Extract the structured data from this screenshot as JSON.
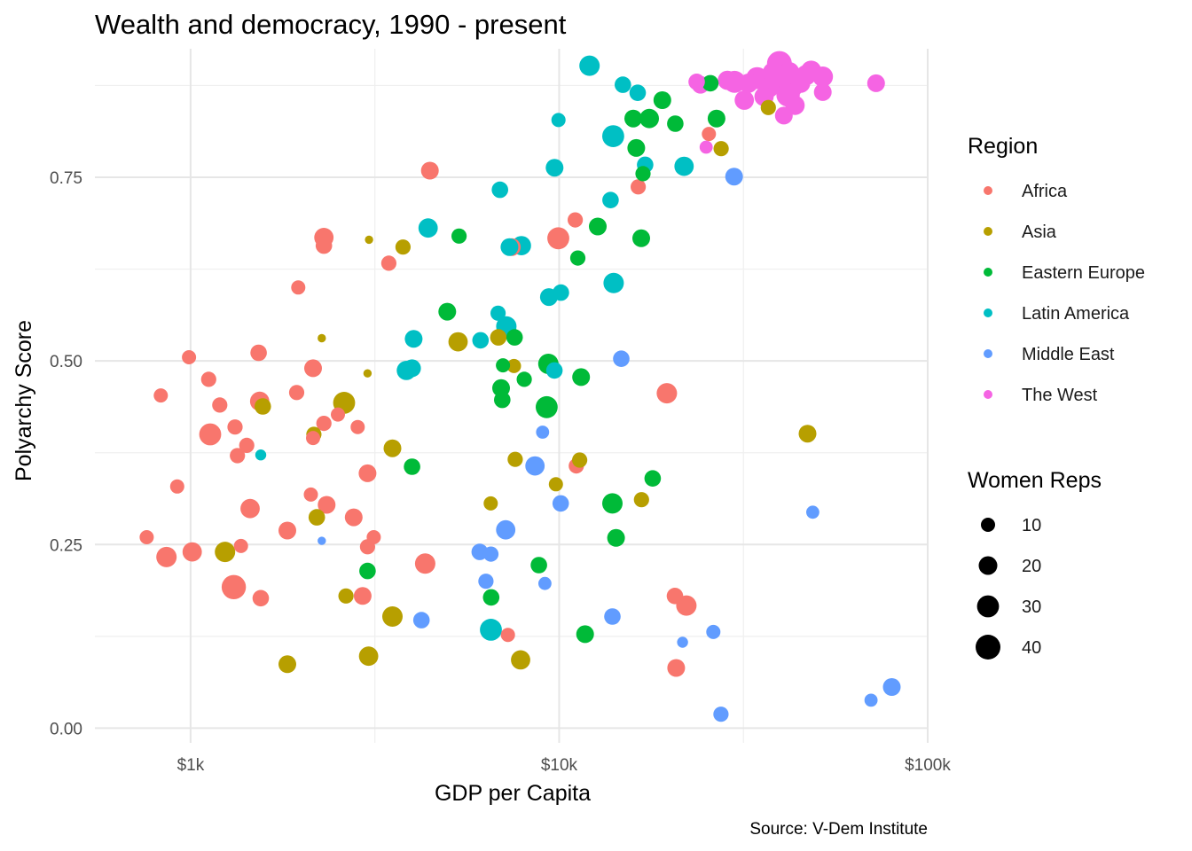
{
  "chart_data": {
    "type": "scatter",
    "title": "Wealth and democracy, 1990 - present",
    "xlabel": "GDP per Capita",
    "ylabel": "Polyarchy Score",
    "caption": "Source: V-Dem Institute",
    "x_scale": "log10",
    "xlim": [
      550,
      100000
    ],
    "ylim": [
      -0.02,
      0.925
    ],
    "x_ticks": [
      1000,
      10000,
      100000
    ],
    "x_tick_labels": [
      "$1k",
      "$10k",
      "$100k"
    ],
    "y_ticks": [
      0,
      0.25,
      0.5,
      0.75
    ],
    "y_tick_labels": [
      "0.00",
      "0.25",
      "0.50",
      "0.75"
    ],
    "grid": true,
    "legend_placement": "right",
    "color_legend": {
      "title": "Region",
      "entries": [
        {
          "name": "Africa",
          "color": "#F8766D"
        },
        {
          "name": "Asia",
          "color": "#B79F00"
        },
        {
          "name": "Eastern Europe",
          "color": "#00BA38"
        },
        {
          "name": "Latin America",
          "color": "#00BFC4"
        },
        {
          "name": "Middle East",
          "color": "#619CFF"
        },
        {
          "name": "The West",
          "color": "#F564E3"
        }
      ]
    },
    "size_legend": {
      "title": "Women Reps",
      "entries": [
        {
          "label": "10",
          "value": 10
        },
        {
          "label": "20",
          "value": 20
        },
        {
          "label": "30",
          "value": 30
        },
        {
          "label": "40",
          "value": 40
        }
      ]
    },
    "series": [
      {
        "name": "Africa",
        "points": [
          [
            830,
            0.453,
            10
          ],
          [
            990,
            0.505,
            10
          ],
          [
            1120,
            0.475,
            12
          ],
          [
            1130,
            0.4,
            30
          ],
          [
            1200,
            0.44,
            12
          ],
          [
            1320,
            0.41,
            12
          ],
          [
            1340,
            0.371,
            12
          ],
          [
            1420,
            0.385,
            12
          ],
          [
            1310,
            0.192,
            38
          ],
          [
            1450,
            0.299,
            22
          ],
          [
            1370,
            0.248,
            10
          ],
          [
            1530,
            0.511,
            15
          ],
          [
            1540,
            0.445,
            22
          ],
          [
            1550,
            0.177,
            15
          ],
          [
            1010,
            0.24,
            22
          ],
          [
            860,
            0.233,
            25
          ],
          [
            920,
            0.329,
            10
          ],
          [
            760,
            0.26,
            10
          ],
          [
            1960,
            0.6,
            10
          ],
          [
            1940,
            0.457,
            12
          ],
          [
            2150,
            0.49,
            18
          ],
          [
            2300,
            0.415,
            12
          ],
          [
            2150,
            0.395,
            10
          ],
          [
            2510,
            0.427,
            10
          ],
          [
            2300,
            0.668,
            22
          ],
          [
            2300,
            0.657,
            15
          ],
          [
            1830,
            0.269,
            18
          ],
          [
            2120,
            0.318,
            10
          ],
          [
            2340,
            0.304,
            18
          ],
          [
            2840,
            0.41,
            10
          ],
          [
            2770,
            0.287,
            18
          ],
          [
            3140,
            0.26,
            10
          ],
          [
            3020,
            0.247,
            12
          ],
          [
            3020,
            0.347,
            18
          ],
          [
            2930,
            0.18,
            18
          ],
          [
            3450,
            0.633,
            12
          ],
          [
            4460,
            0.759,
            18
          ],
          [
            4330,
            0.224,
            25
          ],
          [
            7440,
            0.655,
            18
          ],
          [
            9950,
            0.667,
            30
          ],
          [
            11060,
            0.692,
            12
          ],
          [
            11130,
            0.357,
            12
          ],
          [
            16390,
            0.737,
            12
          ],
          [
            19600,
            0.456,
            25
          ],
          [
            20610,
            0.18,
            15
          ],
          [
            22140,
            0.167,
            25
          ],
          [
            20780,
            0.082,
            18
          ],
          [
            7260,
            0.127,
            10
          ],
          [
            25490,
            0.809,
            10
          ]
        ]
      },
      {
        "name": "Asia",
        "points": [
          [
            1570,
            0.438,
            15
          ],
          [
            1240,
            0.24,
            25
          ],
          [
            1830,
            0.087,
            18
          ],
          [
            2160,
            0.4,
            12
          ],
          [
            2270,
            0.531,
            2
          ],
          [
            2200,
            0.287,
            15
          ],
          [
            2610,
            0.443,
            30
          ],
          [
            2640,
            0.18,
            12
          ],
          [
            3050,
            0.665,
            2
          ],
          [
            3020,
            0.483,
            2
          ],
          [
            3770,
            0.655,
            12
          ],
          [
            3530,
            0.381,
            18
          ],
          [
            3530,
            0.152,
            25
          ],
          [
            3040,
            0.098,
            22
          ],
          [
            5320,
            0.526,
            22
          ],
          [
            6840,
            0.532,
            15
          ],
          [
            7540,
            0.493,
            10
          ],
          [
            7600,
            0.366,
            12
          ],
          [
            6520,
            0.306,
            10
          ],
          [
            7860,
            0.093,
            22
          ],
          [
            9800,
            0.332,
            10
          ],
          [
            11370,
            0.365,
            12
          ],
          [
            16730,
            0.311,
            12
          ],
          [
            27520,
            0.789,
            12
          ],
          [
            36950,
            0.845,
            12
          ],
          [
            47200,
            0.401,
            18
          ]
        ]
      },
      {
        "name": "Eastern Europe",
        "points": [
          [
            3990,
            0.356,
            15
          ],
          [
            4970,
            0.567,
            18
          ],
          [
            5350,
            0.67,
            12
          ],
          [
            7570,
            0.532,
            15
          ],
          [
            7040,
            0.494,
            10
          ],
          [
            6960,
            0.463,
            18
          ],
          [
            7010,
            0.447,
            15
          ],
          [
            6540,
            0.178,
            15
          ],
          [
            8040,
            0.475,
            12
          ],
          [
            8810,
            0.222,
            15
          ],
          [
            9350,
            0.496,
            25
          ],
          [
            9250,
            0.437,
            30
          ],
          [
            11240,
            0.64,
            12
          ],
          [
            11470,
            0.478,
            18
          ],
          [
            12730,
            0.683,
            18
          ],
          [
            11760,
            0.128,
            18
          ],
          [
            13950,
            0.306,
            25
          ],
          [
            14270,
            0.259,
            18
          ],
          [
            15890,
            0.83,
            18
          ],
          [
            16190,
            0.79,
            18
          ],
          [
            16890,
            0.755,
            12
          ],
          [
            16700,
            0.667,
            18
          ],
          [
            17560,
            0.83,
            22
          ],
          [
            17940,
            0.34,
            15
          ],
          [
            19050,
            0.855,
            18
          ],
          [
            20660,
            0.823,
            15
          ],
          [
            25710,
            0.878,
            15
          ],
          [
            26730,
            0.83,
            18
          ],
          [
            3020,
            0.214,
            15
          ]
        ]
      },
      {
        "name": "Latin America",
        "points": [
          [
            1550,
            0.372,
            5
          ],
          [
            3850,
            0.487,
            22
          ],
          [
            3990,
            0.49,
            18
          ],
          [
            4030,
            0.53,
            18
          ],
          [
            4410,
            0.681,
            22
          ],
          [
            6120,
            0.528,
            15
          ],
          [
            6830,
            0.565,
            12
          ],
          [
            6910,
            0.733,
            15
          ],
          [
            7190,
            0.547,
            25
          ],
          [
            6530,
            0.134,
            30
          ],
          [
            7330,
            0.655,
            18
          ],
          [
            7900,
            0.657,
            22
          ],
          [
            9380,
            0.587,
            18
          ],
          [
            9720,
            0.763,
            18
          ],
          [
            9710,
            0.487,
            15
          ],
          [
            10110,
            0.593,
            15
          ],
          [
            9960,
            0.828,
            10
          ],
          [
            12090,
            0.902,
            25
          ],
          [
            13790,
            0.719,
            15
          ],
          [
            14020,
            0.806,
            30
          ],
          [
            14060,
            0.606,
            25
          ],
          [
            14890,
            0.876,
            15
          ],
          [
            17110,
            0.767,
            15
          ],
          [
            16330,
            0.865,
            15
          ],
          [
            21830,
            0.765,
            22
          ]
        ]
      },
      {
        "name": "Middle East",
        "points": [
          [
            2270,
            0.255,
            2
          ],
          [
            4230,
            0.147,
            15
          ],
          [
            6090,
            0.24,
            15
          ],
          [
            6330,
            0.2,
            12
          ],
          [
            6530,
            0.237,
            12
          ],
          [
            7160,
            0.27,
            22
          ],
          [
            8600,
            0.357,
            22
          ],
          [
            9150,
            0.197,
            8
          ],
          [
            9020,
            0.403,
            8
          ],
          [
            10100,
            0.306,
            15
          ],
          [
            13950,
            0.152,
            15
          ],
          [
            14740,
            0.503,
            15
          ],
          [
            21620,
            0.117,
            5
          ],
          [
            26210,
            0.131,
            10
          ],
          [
            27490,
            0.019,
            12
          ],
          [
            29830,
            0.751,
            18
          ],
          [
            48780,
            0.294,
            8
          ],
          [
            70200,
            0.038,
            8
          ],
          [
            79880,
            0.056,
            18
          ]
        ]
      },
      {
        "name": "The West",
        "points": [
          [
            23610,
            0.88,
            15
          ],
          [
            24180,
            0.876,
            18
          ],
          [
            25050,
            0.791,
            8
          ],
          [
            28610,
            0.882,
            22
          ],
          [
            29910,
            0.88,
            30
          ],
          [
            31790,
            0.855,
            22
          ],
          [
            32620,
            0.878,
            22
          ],
          [
            34450,
            0.885,
            30
          ],
          [
            35980,
            0.86,
            22
          ],
          [
            37020,
            0.872,
            25
          ],
          [
            38200,
            0.892,
            30
          ],
          [
            39600,
            0.905,
            40
          ],
          [
            40820,
            0.884,
            40
          ],
          [
            41810,
            0.862,
            35
          ],
          [
            42100,
            0.893,
            25
          ],
          [
            42600,
            0.875,
            40
          ],
          [
            40700,
            0.834,
            18
          ],
          [
            43650,
            0.848,
            22
          ],
          [
            45210,
            0.878,
            22
          ],
          [
            46770,
            0.889,
            25
          ],
          [
            48270,
            0.895,
            25
          ],
          [
            51930,
            0.887,
            25
          ],
          [
            51920,
            0.866,
            18
          ],
          [
            72450,
            0.878,
            18
          ]
        ]
      }
    ]
  }
}
